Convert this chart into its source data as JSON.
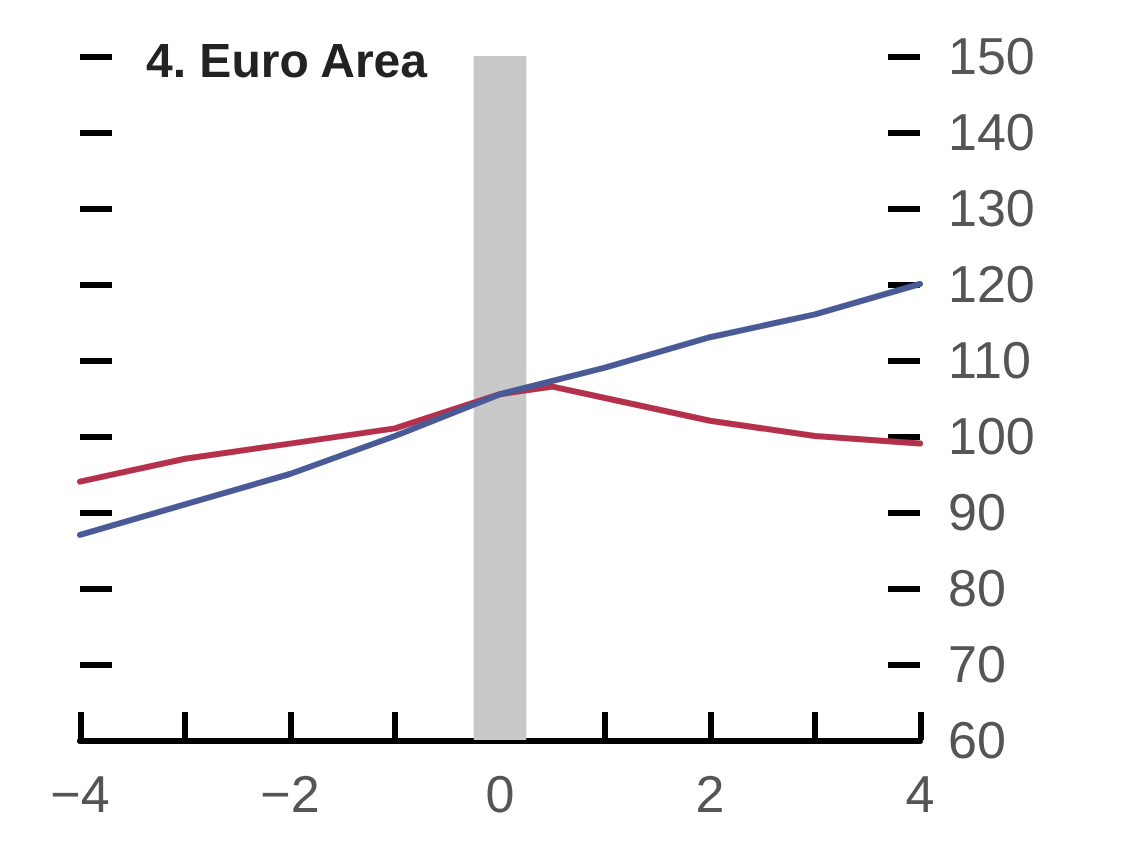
{
  "chart_data": {
    "type": "line",
    "title": "4. Euro Area",
    "xlim": [
      -4,
      4
    ],
    "xticks": [
      {
        "value": -4,
        "label": "−4"
      },
      {
        "value": -3,
        "label": null
      },
      {
        "value": -2,
        "label": "−2"
      },
      {
        "value": -1,
        "label": null
      },
      0,
      {
        "value": 1,
        "label": null
      },
      2,
      {
        "value": 3,
        "label": null
      },
      4
    ],
    "ylim": [
      60,
      150
    ],
    "yticks": [
      60,
      70,
      80,
      90,
      100,
      110,
      120,
      130,
      140,
      150
    ],
    "series": [
      {
        "color": "#b5304a",
        "x": [
          -4,
          -3,
          -2,
          -1,
          0,
          0.5,
          1,
          2,
          3,
          4
        ],
        "values": [
          94,
          97,
          99,
          101,
          105.5,
          106.5,
          105,
          102,
          100,
          99
        ]
      },
      {
        "color": "#4a5a96",
        "x": [
          -4,
          -3,
          -2,
          -1,
          0,
          1,
          2,
          3,
          4
        ],
        "values": [
          87,
          91,
          95,
          100,
          105.5,
          109,
          113,
          116,
          120
        ]
      }
    ],
    "bands": [
      {
        "axis": "x",
        "from": -0.25,
        "to": 0.25,
        "color": "#c8c8c8"
      }
    ],
    "grid": false,
    "marker": "none",
    "line_style": "solid"
  }
}
